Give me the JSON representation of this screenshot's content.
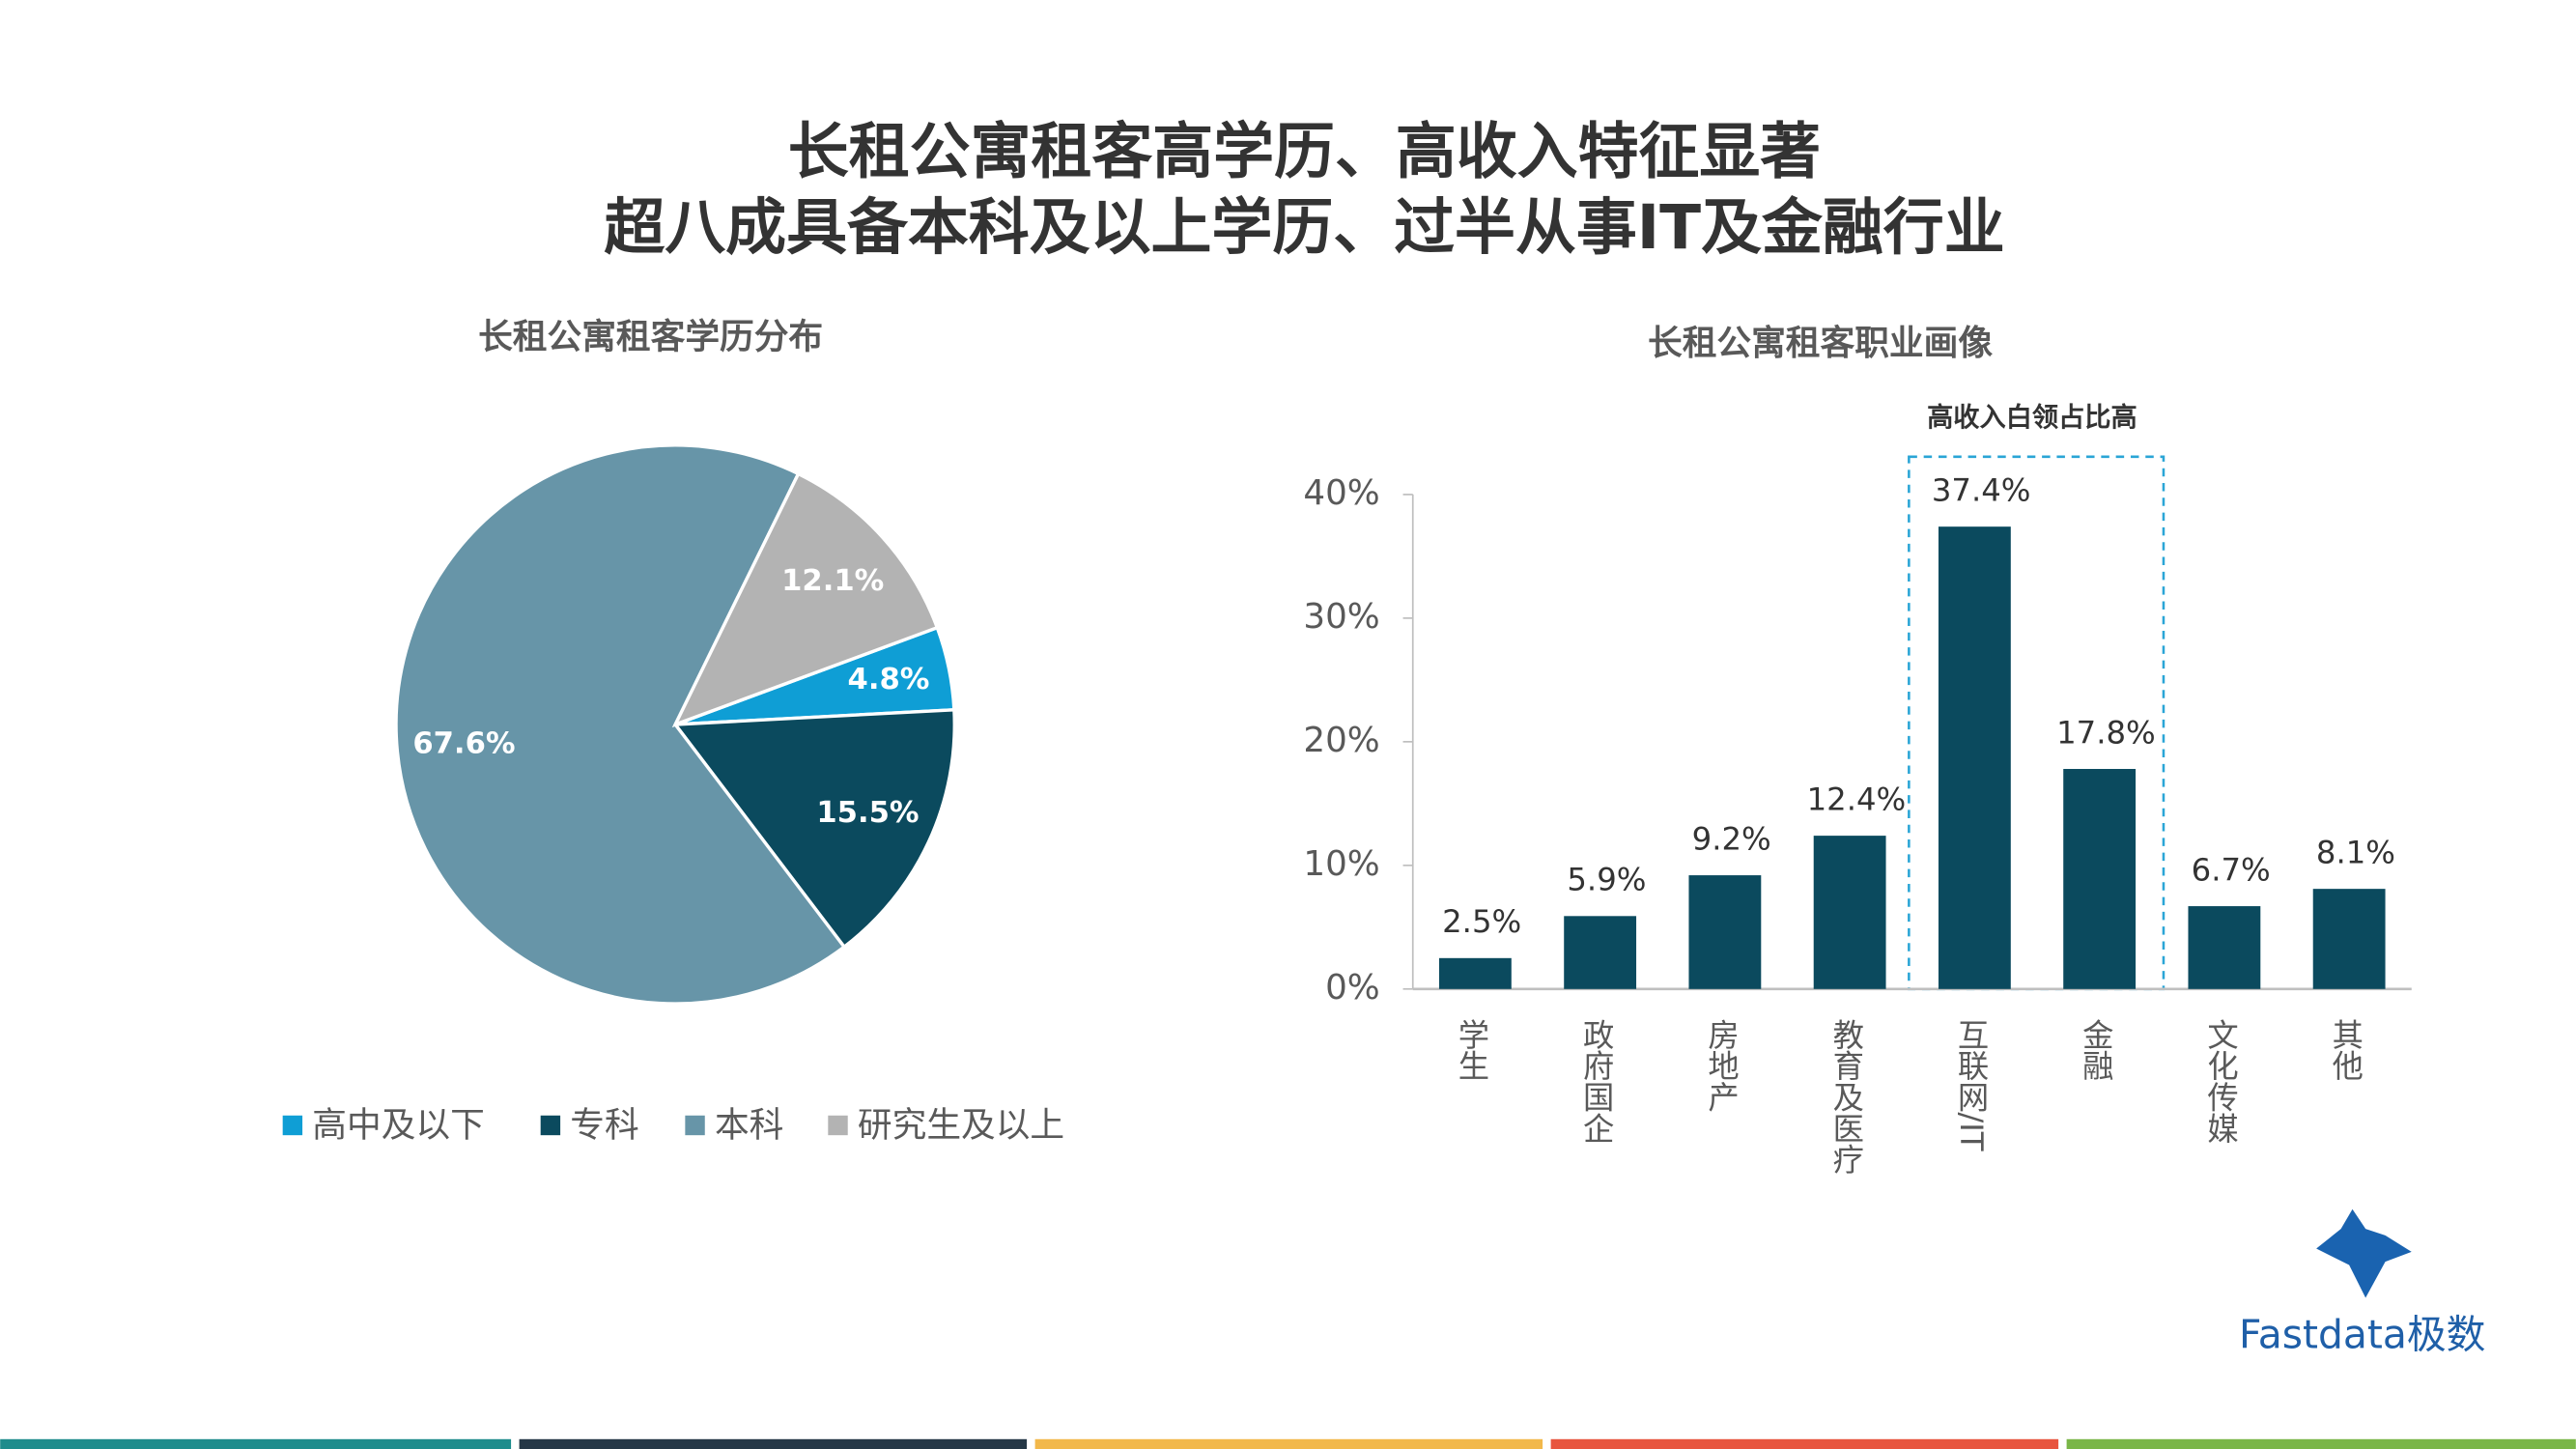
{
  "title": [
    "长租公寓租客高学历、高收入特征显著",
    "超八成具备本科及以上学历、过半从事IT及金融行业"
  ],
  "chart_data": [
    {
      "type": "pie",
      "title": "长租公寓租客学历分布",
      "categories": [
        "高中及以下",
        "专科",
        "本科",
        "研究生及以上"
      ],
      "values": [
        4.8,
        15.5,
        67.6,
        12.1
      ],
      "value_labels": [
        "4.8%",
        "15.5%",
        "67.6%",
        "12.1%"
      ],
      "colors": [
        "#0f9ed5",
        "#0b4a5e",
        "#6795a8",
        "#b3b3b3"
      ],
      "legend": "bottom"
    },
    {
      "type": "bar",
      "title": "长租公寓租客职业画像",
      "annotation": "高收入白领占比高",
      "categories": [
        "学生",
        "政府国企",
        "房地产",
        "教育及医疗",
        "互联网/IT",
        "金融",
        "文化传媒",
        "其他"
      ],
      "values": [
        2.5,
        5.9,
        9.2,
        12.4,
        37.4,
        17.8,
        6.7,
        8.1
      ],
      "value_labels": [
        "2.5%",
        "5.9%",
        "9.2%",
        "12.4%",
        "37.4%",
        "17.8%",
        "6.7%",
        "8.1%"
      ],
      "color": "#0b4a5e",
      "ylim": [
        0,
        40
      ],
      "yticks": [
        {
          "value": 0,
          "label": "0%"
        },
        {
          "value": 10,
          "label": "10%"
        },
        {
          "value": 20,
          "label": "20%"
        },
        {
          "value": 30,
          "label": "30%"
        },
        {
          "value": 40,
          "label": "40%"
        }
      ],
      "grid": false
    }
  ],
  "logo": "Fastdata极数"
}
